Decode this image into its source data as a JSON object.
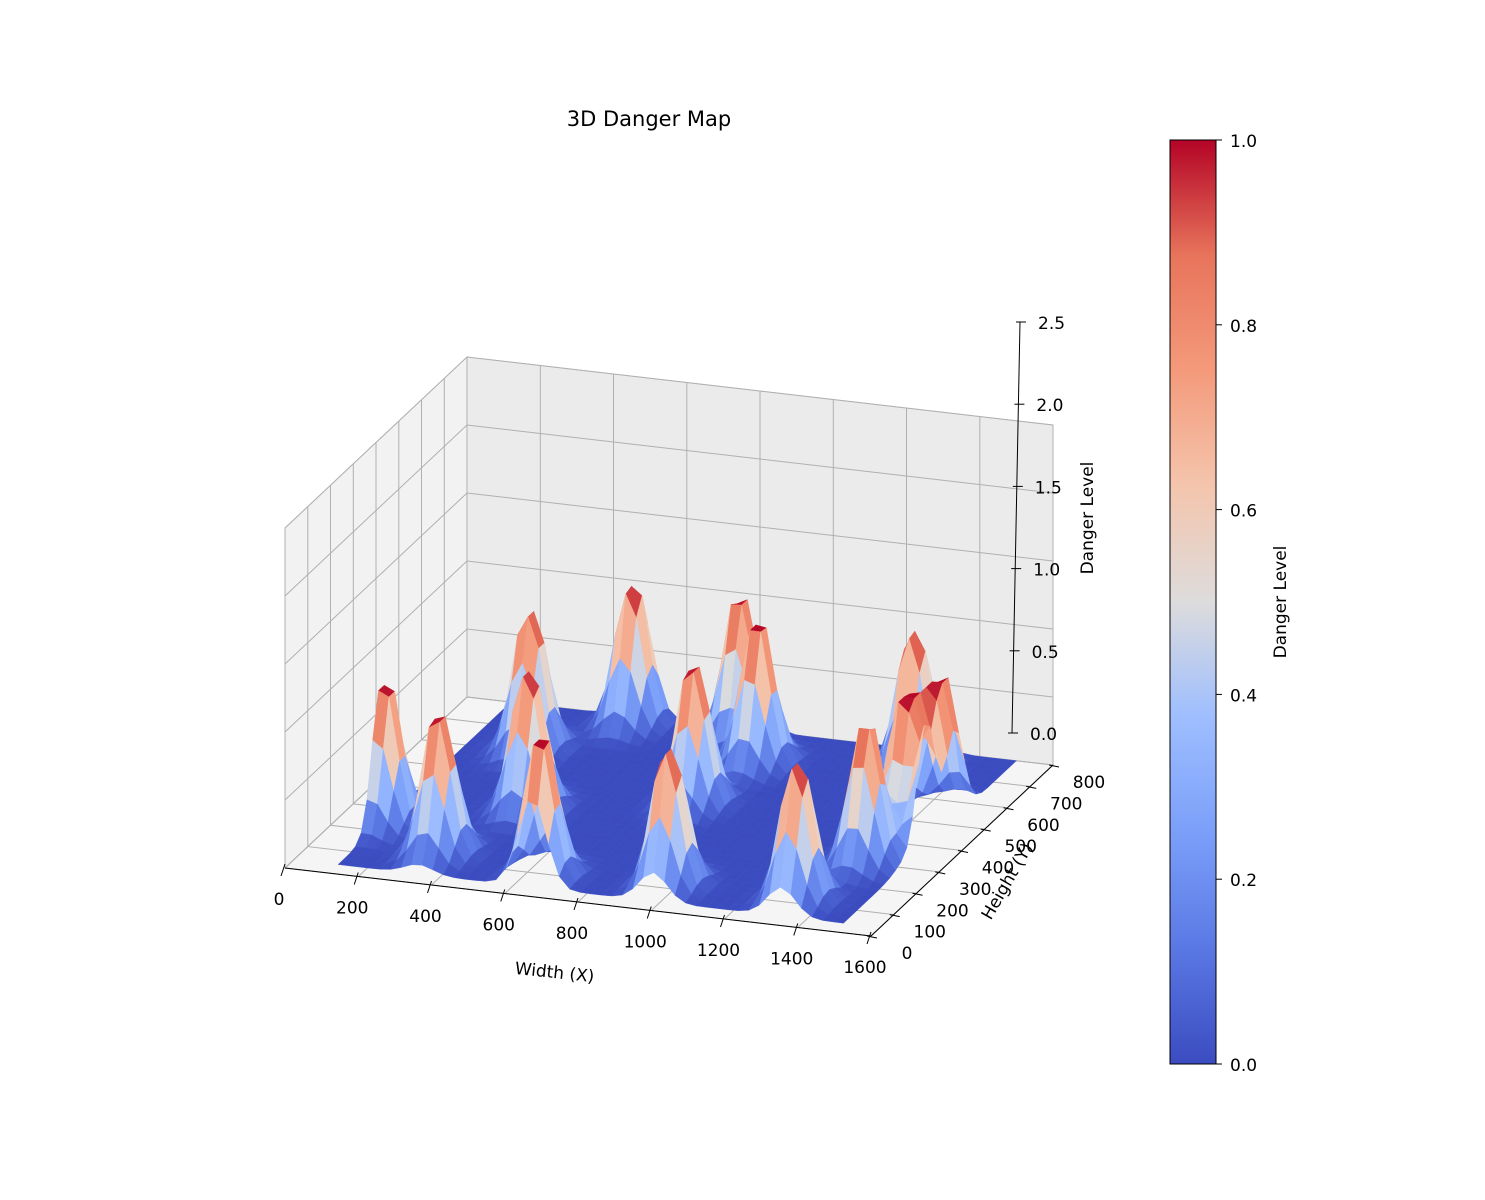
{
  "chart_data": {
    "type": "surface",
    "title": "3D Danger Map",
    "xlabel": "Width (X)",
    "ylabel": "Height (Y)",
    "zlabel": "Danger Level",
    "x_ticks": [
      "0",
      "200",
      "400",
      "600",
      "800",
      "1000",
      "1200",
      "1400",
      "1600"
    ],
    "y_ticks": [
      "0",
      "100",
      "200",
      "300",
      "400",
      "500",
      "600",
      "700",
      "800"
    ],
    "z_ticks": [
      "0.0",
      "0.5",
      "1.0",
      "1.5",
      "2.0",
      "2.5"
    ],
    "xlim": [
      0,
      1600
    ],
    "ylim": [
      0,
      800
    ],
    "zlim": [
      0,
      2.5
    ],
    "grid": true,
    "colormap": "coolwarm",
    "colorbar": {
      "label": "Danger Level",
      "ticks": [
        "0.0",
        "0.2",
        "0.4",
        "0.6",
        "0.8",
        "1.0"
      ],
      "range": [
        0,
        1
      ]
    },
    "peaks": [
      {
        "x": 130,
        "y": 230,
        "z": 1.0
      },
      {
        "x": 290,
        "y": 610,
        "z": 1.0
      },
      {
        "x": 340,
        "y": 130,
        "z": 1.0
      },
      {
        "x": 440,
        "y": 360,
        "z": 1.0
      },
      {
        "x": 470,
        "y": 770,
        "z": 1.0
      },
      {
        "x": 650,
        "y": 80,
        "z": 1.0
      },
      {
        "x": 770,
        "y": 760,
        "z": 1.0
      },
      {
        "x": 880,
        "y": 660,
        "z": 1.0
      },
      {
        "x": 830,
        "y": 460,
        "z": 1.0
      },
      {
        "x": 980,
        "y": 110,
        "z": 1.0
      },
      {
        "x": 1270,
        "y": 720,
        "z": 1.0
      },
      {
        "x": 1330,
        "y": 110,
        "z": 1.0
      },
      {
        "x": 1420,
        "y": 440,
        "z": 1.0
      },
      {
        "x": 1460,
        "y": 530,
        "z": 1.0
      },
      {
        "x": 1530,
        "y": 400,
        "z": 1.0
      },
      {
        "x": 1400,
        "y": 300,
        "z": 1.0
      }
    ]
  }
}
